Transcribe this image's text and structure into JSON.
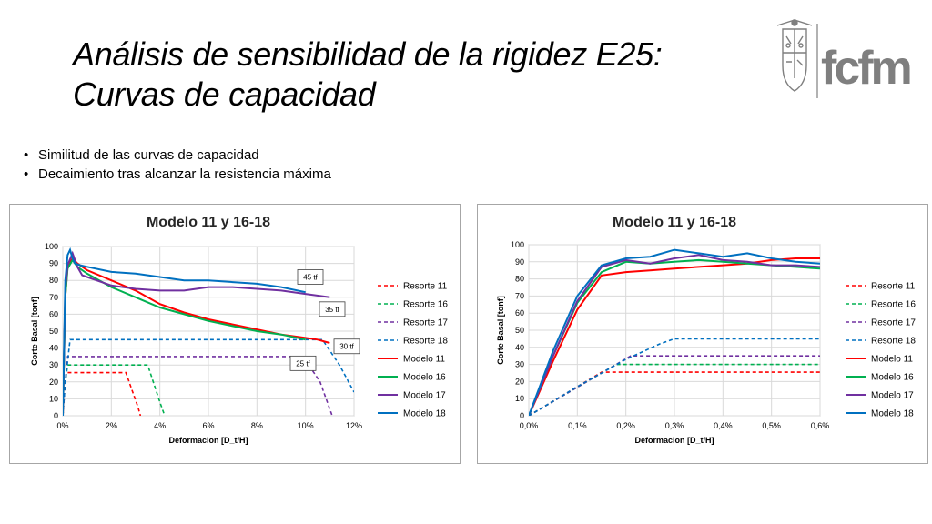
{
  "slide": {
    "title_line1": "Análisis de sensibilidad de la rigidez E25:",
    "title_line2": "Curvas de capacidad",
    "logo_text": "fcfm",
    "bullets": [
      "Similitud de las curvas de capacidad",
      "Decaimiento tras alcanzar la resistencia máxima"
    ]
  },
  "chart_data": [
    {
      "type": "line",
      "title": "Modelo 11 y 16-18",
      "xlabel": "Deformacion [D_t/H]",
      "ylabel": "Corte Basal [tonf]",
      "xlim": [
        0,
        12
      ],
      "ylim": [
        0,
        100
      ],
      "xticks": [
        0,
        2,
        4,
        6,
        8,
        10,
        12
      ],
      "xtick_labels": [
        "0%",
        "2%",
        "4%",
        "6%",
        "8%",
        "10%",
        "12%"
      ],
      "yticks": [
        0,
        10,
        20,
        30,
        40,
        50,
        60,
        70,
        80,
        90,
        100
      ],
      "grid": true,
      "legend_position": "right",
      "annotations": [
        {
          "text": "45 tf",
          "x": 10.2,
          "y": 82
        },
        {
          "text": "35 tf",
          "x": 11.1,
          "y": 63
        },
        {
          "text": "30 tf",
          "x": 11.7,
          "y": 41
        },
        {
          "text": "25 tf",
          "x": 9.9,
          "y": 31
        }
      ],
      "series": [
        {
          "name": "Resorte 11",
          "color": "#ff0000",
          "dash": true,
          "x": [
            0,
            0.1,
            0.15,
            2.6,
            3.1,
            3.2
          ],
          "y": [
            0,
            20,
            25.5,
            25.5,
            5,
            0
          ]
        },
        {
          "name": "Resorte 16",
          "color": "#00b050",
          "dash": true,
          "x": [
            0,
            0.1,
            0.2,
            3.5,
            4.0,
            4.2
          ],
          "y": [
            0,
            20,
            30,
            30,
            8,
            0
          ]
        },
        {
          "name": "Resorte 17",
          "color": "#7030a0",
          "dash": true,
          "x": [
            0,
            0.1,
            0.2,
            9.9,
            10.6,
            11.1
          ],
          "y": [
            0,
            20,
            35,
            35,
            20,
            0
          ]
        },
        {
          "name": "Resorte 18",
          "color": "#0070c0",
          "dash": true,
          "x": [
            0,
            0.1,
            0.3,
            10.7,
            11.4,
            12
          ],
          "y": [
            0,
            20,
            45,
            45,
            30,
            14
          ]
        },
        {
          "name": "Modelo 11",
          "color": "#ff0000",
          "dash": false,
          "x": [
            0,
            0.1,
            0.2,
            0.4,
            0.6,
            1,
            2,
            3,
            4,
            5,
            6,
            7,
            8,
            9,
            10,
            10.5,
            11
          ],
          "y": [
            0,
            70,
            88,
            93,
            90,
            86,
            80,
            74,
            66,
            61,
            57,
            54,
            51,
            48,
            46,
            45,
            43
          ]
        },
        {
          "name": "Modelo 16",
          "color": "#00b050",
          "dash": false,
          "x": [
            0,
            0.1,
            0.2,
            0.4,
            0.6,
            1,
            2,
            3,
            4,
            5,
            6,
            7,
            8,
            9,
            10
          ],
          "y": [
            0,
            70,
            87,
            92,
            88,
            84,
            76,
            70,
            64,
            60,
            56,
            53,
            50,
            48,
            45
          ]
        },
        {
          "name": "Modelo 17",
          "color": "#7030a0",
          "dash": false,
          "x": [
            0,
            0.1,
            0.2,
            0.4,
            0.6,
            0.8,
            1,
            2,
            3,
            4,
            5,
            6,
            7,
            8,
            9,
            10,
            11
          ],
          "y": [
            0,
            75,
            89,
            96,
            88,
            83,
            82,
            77,
            75,
            74,
            74,
            76,
            76,
            75,
            74,
            72,
            70
          ]
        },
        {
          "name": "Modelo 18",
          "color": "#0070c0",
          "dash": false,
          "x": [
            0,
            0.1,
            0.2,
            0.3,
            0.4,
            0.5,
            0.7,
            1,
            2,
            3,
            4,
            5,
            6,
            7,
            8,
            9,
            10
          ],
          "y": [
            0,
            80,
            95,
            98,
            93,
            90,
            89,
            88,
            85,
            84,
            82,
            80,
            80,
            79,
            78,
            76,
            73
          ]
        }
      ]
    },
    {
      "type": "line",
      "title": "Modelo 11 y 16-18",
      "xlabel": "Deformacion [D_t/H]",
      "ylabel": "Corte Basal [tonf]",
      "xlim": [
        0,
        0.6
      ],
      "ylim": [
        0,
        100
      ],
      "xticks": [
        0,
        0.1,
        0.2,
        0.3,
        0.4,
        0.5,
        0.6
      ],
      "xtick_labels": [
        "0,0%",
        "0,1%",
        "0,2%",
        "0,3%",
        "0,4%",
        "0,5%",
        "0,6%"
      ],
      "yticks": [
        0,
        10,
        20,
        30,
        40,
        50,
        60,
        70,
        80,
        90,
        100
      ],
      "grid": true,
      "legend_position": "right",
      "series": [
        {
          "name": "Resorte 11",
          "color": "#ff0000",
          "dash": true,
          "x": [
            0,
            0.15,
            0.6
          ],
          "y": [
            0,
            25.5,
            25.5
          ]
        },
        {
          "name": "Resorte 16",
          "color": "#00b050",
          "dash": true,
          "x": [
            0,
            0.18,
            0.6
          ],
          "y": [
            0,
            30,
            30
          ]
        },
        {
          "name": "Resorte 17",
          "color": "#7030a0",
          "dash": true,
          "x": [
            0,
            0.21,
            0.6
          ],
          "y": [
            0,
            35,
            35
          ]
        },
        {
          "name": "Resorte 18",
          "color": "#0070c0",
          "dash": true,
          "x": [
            0,
            0.1,
            0.2,
            0.27,
            0.3,
            0.6
          ],
          "y": [
            0,
            17,
            33,
            42,
            45,
            45
          ]
        },
        {
          "name": "Modelo 11",
          "color": "#ff0000",
          "dash": false,
          "x": [
            0,
            0.05,
            0.1,
            0.15,
            0.2,
            0.25,
            0.3,
            0.35,
            0.4,
            0.45,
            0.5,
            0.55,
            0.6
          ],
          "y": [
            0,
            32,
            62,
            82,
            84,
            85,
            86,
            87,
            88,
            89,
            91,
            92,
            92
          ]
        },
        {
          "name": "Modelo 16",
          "color": "#00b050",
          "dash": false,
          "x": [
            0,
            0.05,
            0.1,
            0.15,
            0.2,
            0.25,
            0.3,
            0.35,
            0.4,
            0.45,
            0.5,
            0.55,
            0.6
          ],
          "y": [
            0,
            35,
            66,
            84,
            90,
            89,
            90,
            91,
            90,
            89,
            88,
            87,
            86
          ]
        },
        {
          "name": "Modelo 17",
          "color": "#7030a0",
          "dash": false,
          "x": [
            0,
            0.05,
            0.1,
            0.15,
            0.2,
            0.25,
            0.3,
            0.35,
            0.4,
            0.45,
            0.5,
            0.55,
            0.6
          ],
          "y": [
            0,
            35,
            67,
            87,
            91,
            89,
            92,
            94,
            91,
            90,
            88,
            88,
            87
          ]
        },
        {
          "name": "Modelo 18",
          "color": "#0070c0",
          "dash": false,
          "x": [
            0,
            0.05,
            0.1,
            0.15,
            0.2,
            0.25,
            0.3,
            0.35,
            0.4,
            0.45,
            0.5,
            0.55,
            0.6
          ],
          "y": [
            0,
            38,
            70,
            88,
            92,
            93,
            97,
            95,
            93,
            95,
            92,
            90,
            89
          ]
        }
      ]
    }
  ]
}
